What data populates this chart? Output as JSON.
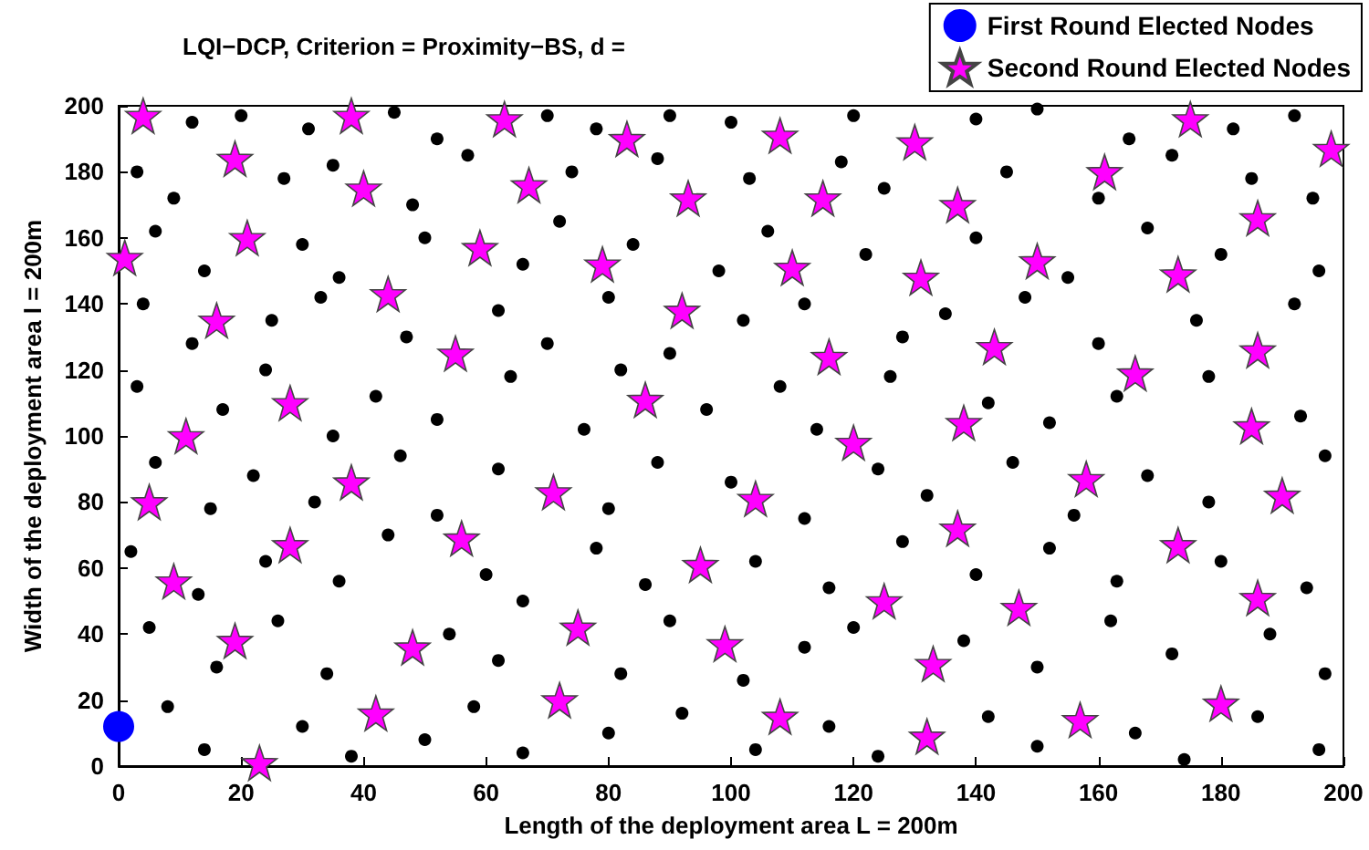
{
  "chart_data": {
    "type": "scatter",
    "title": "LQI−DCP, Criterion = Proximity−BS, d =",
    "xlabel": "Length of the deployment area L = 200m",
    "ylabel": "Width of the deployment area l = 200m",
    "xlim": [
      0,
      200
    ],
    "xticks": [
      0,
      20,
      40,
      60,
      80,
      100,
      120,
      140,
      160,
      180,
      200
    ],
    "ylim": [
      0,
      200
    ],
    "yticks": [
      0,
      20,
      40,
      60,
      80,
      100,
      120,
      140,
      160,
      180,
      200
    ],
    "grid": false,
    "legend": "top right",
    "series": [
      {
        "color": "#000000",
        "marker": "circle",
        "x": [
          12,
          20,
          31,
          45,
          52,
          70,
          78,
          90,
          100,
          120,
          140,
          150,
          165,
          182,
          192,
          3,
          9,
          27,
          35,
          48,
          57,
          74,
          88,
          103,
          118,
          125,
          145,
          160,
          172,
          185,
          195,
          6,
          14,
          30,
          36,
          50,
          66,
          72,
          84,
          98,
          106,
          122,
          140,
          155,
          168,
          180,
          196,
          4,
          12,
          25,
          33,
          47,
          62,
          70,
          80,
          90,
          102,
          112,
          128,
          135,
          148,
          160,
          176,
          192,
          3,
          17,
          24,
          35,
          42,
          52,
          64,
          76,
          82,
          96,
          108,
          114,
          126,
          142,
          152,
          163,
          178,
          193,
          6,
          15,
          22,
          32,
          46,
          52,
          62,
          80,
          88,
          100,
          112,
          124,
          132,
          146,
          156,
          168,
          178,
          197,
          2,
          13,
          24,
          36,
          44,
          60,
          66,
          78,
          86,
          104,
          116,
          128,
          140,
          152,
          163,
          180,
          194,
          5,
          16,
          26,
          34,
          54,
          62,
          82,
          90,
          102,
          112,
          120,
          138,
          150,
          162,
          172,
          188,
          197,
          8,
          14,
          30,
          38,
          50,
          58,
          66,
          80,
          92,
          104,
          116,
          124,
          142,
          150,
          166,
          174,
          186,
          196
        ],
        "values": [
          195,
          197,
          193,
          198,
          190,
          197,
          193,
          197,
          195,
          197,
          196,
          199,
          190,
          193,
          197,
          180,
          172,
          178,
          182,
          170,
          185,
          180,
          184,
          178,
          183,
          175,
          180,
          172,
          185,
          178,
          172,
          162,
          150,
          158,
          148,
          160,
          152,
          165,
          158,
          150,
          162,
          155,
          160,
          148,
          163,
          155,
          150,
          140,
          128,
          135,
          142,
          130,
          138,
          128,
          142,
          125,
          135,
          140,
          130,
          137,
          142,
          128,
          135,
          140,
          115,
          108,
          120,
          100,
          112,
          105,
          118,
          102,
          120,
          108,
          115,
          102,
          118,
          110,
          104,
          112,
          118,
          106,
          92,
          78,
          88,
          80,
          94,
          76,
          90,
          78,
          92,
          86,
          75,
          90,
          82,
          92,
          76,
          88,
          80,
          94,
          65,
          52,
          62,
          56,
          70,
          58,
          50,
          66,
          55,
          62,
          54,
          68,
          58,
          66,
          56,
          62,
          54,
          42,
          30,
          44,
          28,
          40,
          32,
          28,
          44,
          26,
          36,
          42,
          38,
          30,
          44,
          34,
          40,
          28,
          18,
          5,
          12,
          3,
          8,
          18,
          4,
          10,
          16,
          5,
          12,
          3,
          15,
          6,
          10,
          2,
          15,
          5
        ]
      },
      {
        "name": "First Round Elected Nodes",
        "color": "#0000ff",
        "marker": "circle",
        "x": [
          0
        ],
        "values": [
          12
        ]
      },
      {
        "name": "Second Round Elected Nodes",
        "color": "#ff00ff",
        "marker": "star",
        "x": [
          4,
          1,
          19,
          21,
          16,
          11,
          5,
          9,
          19,
          23,
          28,
          28,
          38,
          40,
          44,
          38,
          42,
          48,
          55,
          56,
          59,
          63,
          67,
          71,
          75,
          72,
          79,
          83,
          86,
          92,
          93,
          95,
          99,
          104,
          108,
          110,
          108,
          115,
          116,
          120,
          125,
          130,
          131,
          133,
          132,
          137,
          137,
          138,
          143,
          147,
          150,
          158,
          157,
          161,
          166,
          173,
          173,
          175,
          180,
          186,
          186,
          185,
          186,
          190,
          198
        ],
        "values": [
          197,
          154,
          184,
          160,
          135,
          100,
          80,
          56,
          38,
          1,
          110,
          67,
          197,
          175,
          143,
          86,
          16,
          36,
          125,
          69,
          157,
          196,
          176,
          83,
          42,
          20,
          152,
          190,
          111,
          138,
          172,
          61,
          37,
          81,
          191,
          151,
          15,
          172,
          124,
          98,
          50,
          189,
          148,
          31,
          9,
          170,
          72,
          104,
          127,
          48,
          153,
          87,
          14,
          180,
          119,
          149,
          67,
          196,
          19,
          166,
          126,
          103,
          51,
          82,
          187
        ]
      }
    ]
  }
}
